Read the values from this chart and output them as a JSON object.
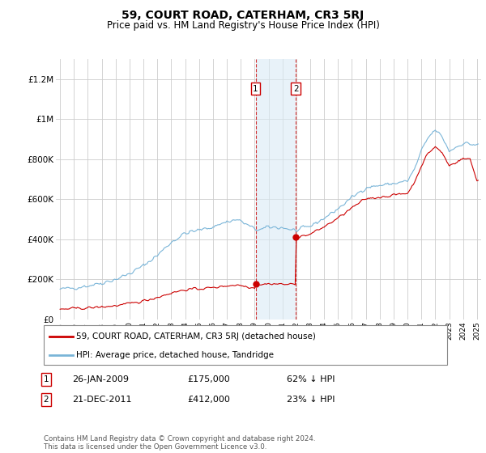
{
  "title": "59, COURT ROAD, CATERHAM, CR3 5RJ",
  "subtitle": "Price paid vs. HM Land Registry's House Price Index (HPI)",
  "legend_line1": "59, COURT ROAD, CATERHAM, CR3 5RJ (detached house)",
  "legend_line2": "HPI: Average price, detached house, Tandridge",
  "footer": "Contains HM Land Registry data © Crown copyright and database right 2024.\nThis data is licensed under the Open Government Licence v3.0.",
  "annotation1_date": "26-JAN-2009",
  "annotation1_price": "£175,000",
  "annotation1_hpi": "62% ↓ HPI",
  "annotation2_date": "21-DEC-2011",
  "annotation2_price": "£412,000",
  "annotation2_hpi": "23% ↓ HPI",
  "hpi_color": "#7ab5d8",
  "price_color": "#cc0000",
  "background_color": "#ffffff",
  "grid_color": "#cccccc",
  "shaded_region_color": "#daeaf5",
  "shaded_region_alpha": 0.6,
  "ylim": [
    0,
    1300000
  ],
  "yticks": [
    0,
    200000,
    400000,
    600000,
    800000,
    1000000,
    1200000
  ],
  "ytick_labels": [
    "£0",
    "£200K",
    "£400K",
    "£600K",
    "£800K",
    "£1M",
    "£1.2M"
  ],
  "sale1_x": 2009.07,
  "sale2_x": 2011.97,
  "sale1_y": 175000,
  "sale2_y": 412000,
  "shade_x1": 2009.07,
  "shade_x2": 2011.97,
  "xlim_left": 1994.7,
  "xlim_right": 2025.3
}
